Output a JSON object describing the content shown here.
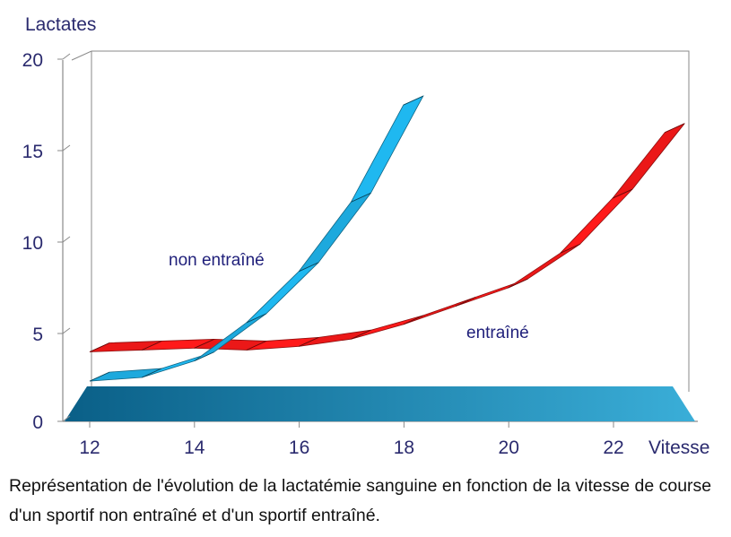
{
  "chart_data": {
    "type": "line",
    "title": "",
    "xlabel": "Vitesse",
    "ylabel": "Lactates",
    "xlim": [
      12,
      23.2
    ],
    "ylim": [
      0,
      20
    ],
    "x_ticks": [
      12,
      14,
      16,
      18,
      20,
      22
    ],
    "y_ticks": [
      0,
      5,
      10,
      15,
      20
    ],
    "grid": false,
    "legend": "inline labels",
    "series": [
      {
        "name": "non entraîné",
        "color": "#1fb8f0",
        "x": [
          12,
          13,
          14,
          15,
          16,
          17,
          18
        ],
        "y": [
          2.2,
          2.4,
          3.3,
          5.4,
          8.2,
          12.0,
          17.3
        ]
      },
      {
        "name": "entraîné",
        "color": "#ff1a1a",
        "x": [
          12,
          13,
          14,
          15,
          16,
          17,
          18,
          19,
          20,
          21,
          22,
          23
        ],
        "y": [
          3.8,
          3.9,
          4.0,
          3.9,
          4.1,
          4.5,
          5.3,
          6.3,
          7.3,
          9.2,
          12.2,
          15.8
        ]
      }
    ]
  },
  "caption": "Représentation de l'évolution de la lactatémie sanguine en fonction de la vitesse de course d'un sportif non entraîné et d'un sportif entraîné.",
  "colors": {
    "floor_light": "#3aaed8",
    "floor_dark": "#0a5f87",
    "axis": "#8a8a8a",
    "text": "#2a2a6e"
  }
}
